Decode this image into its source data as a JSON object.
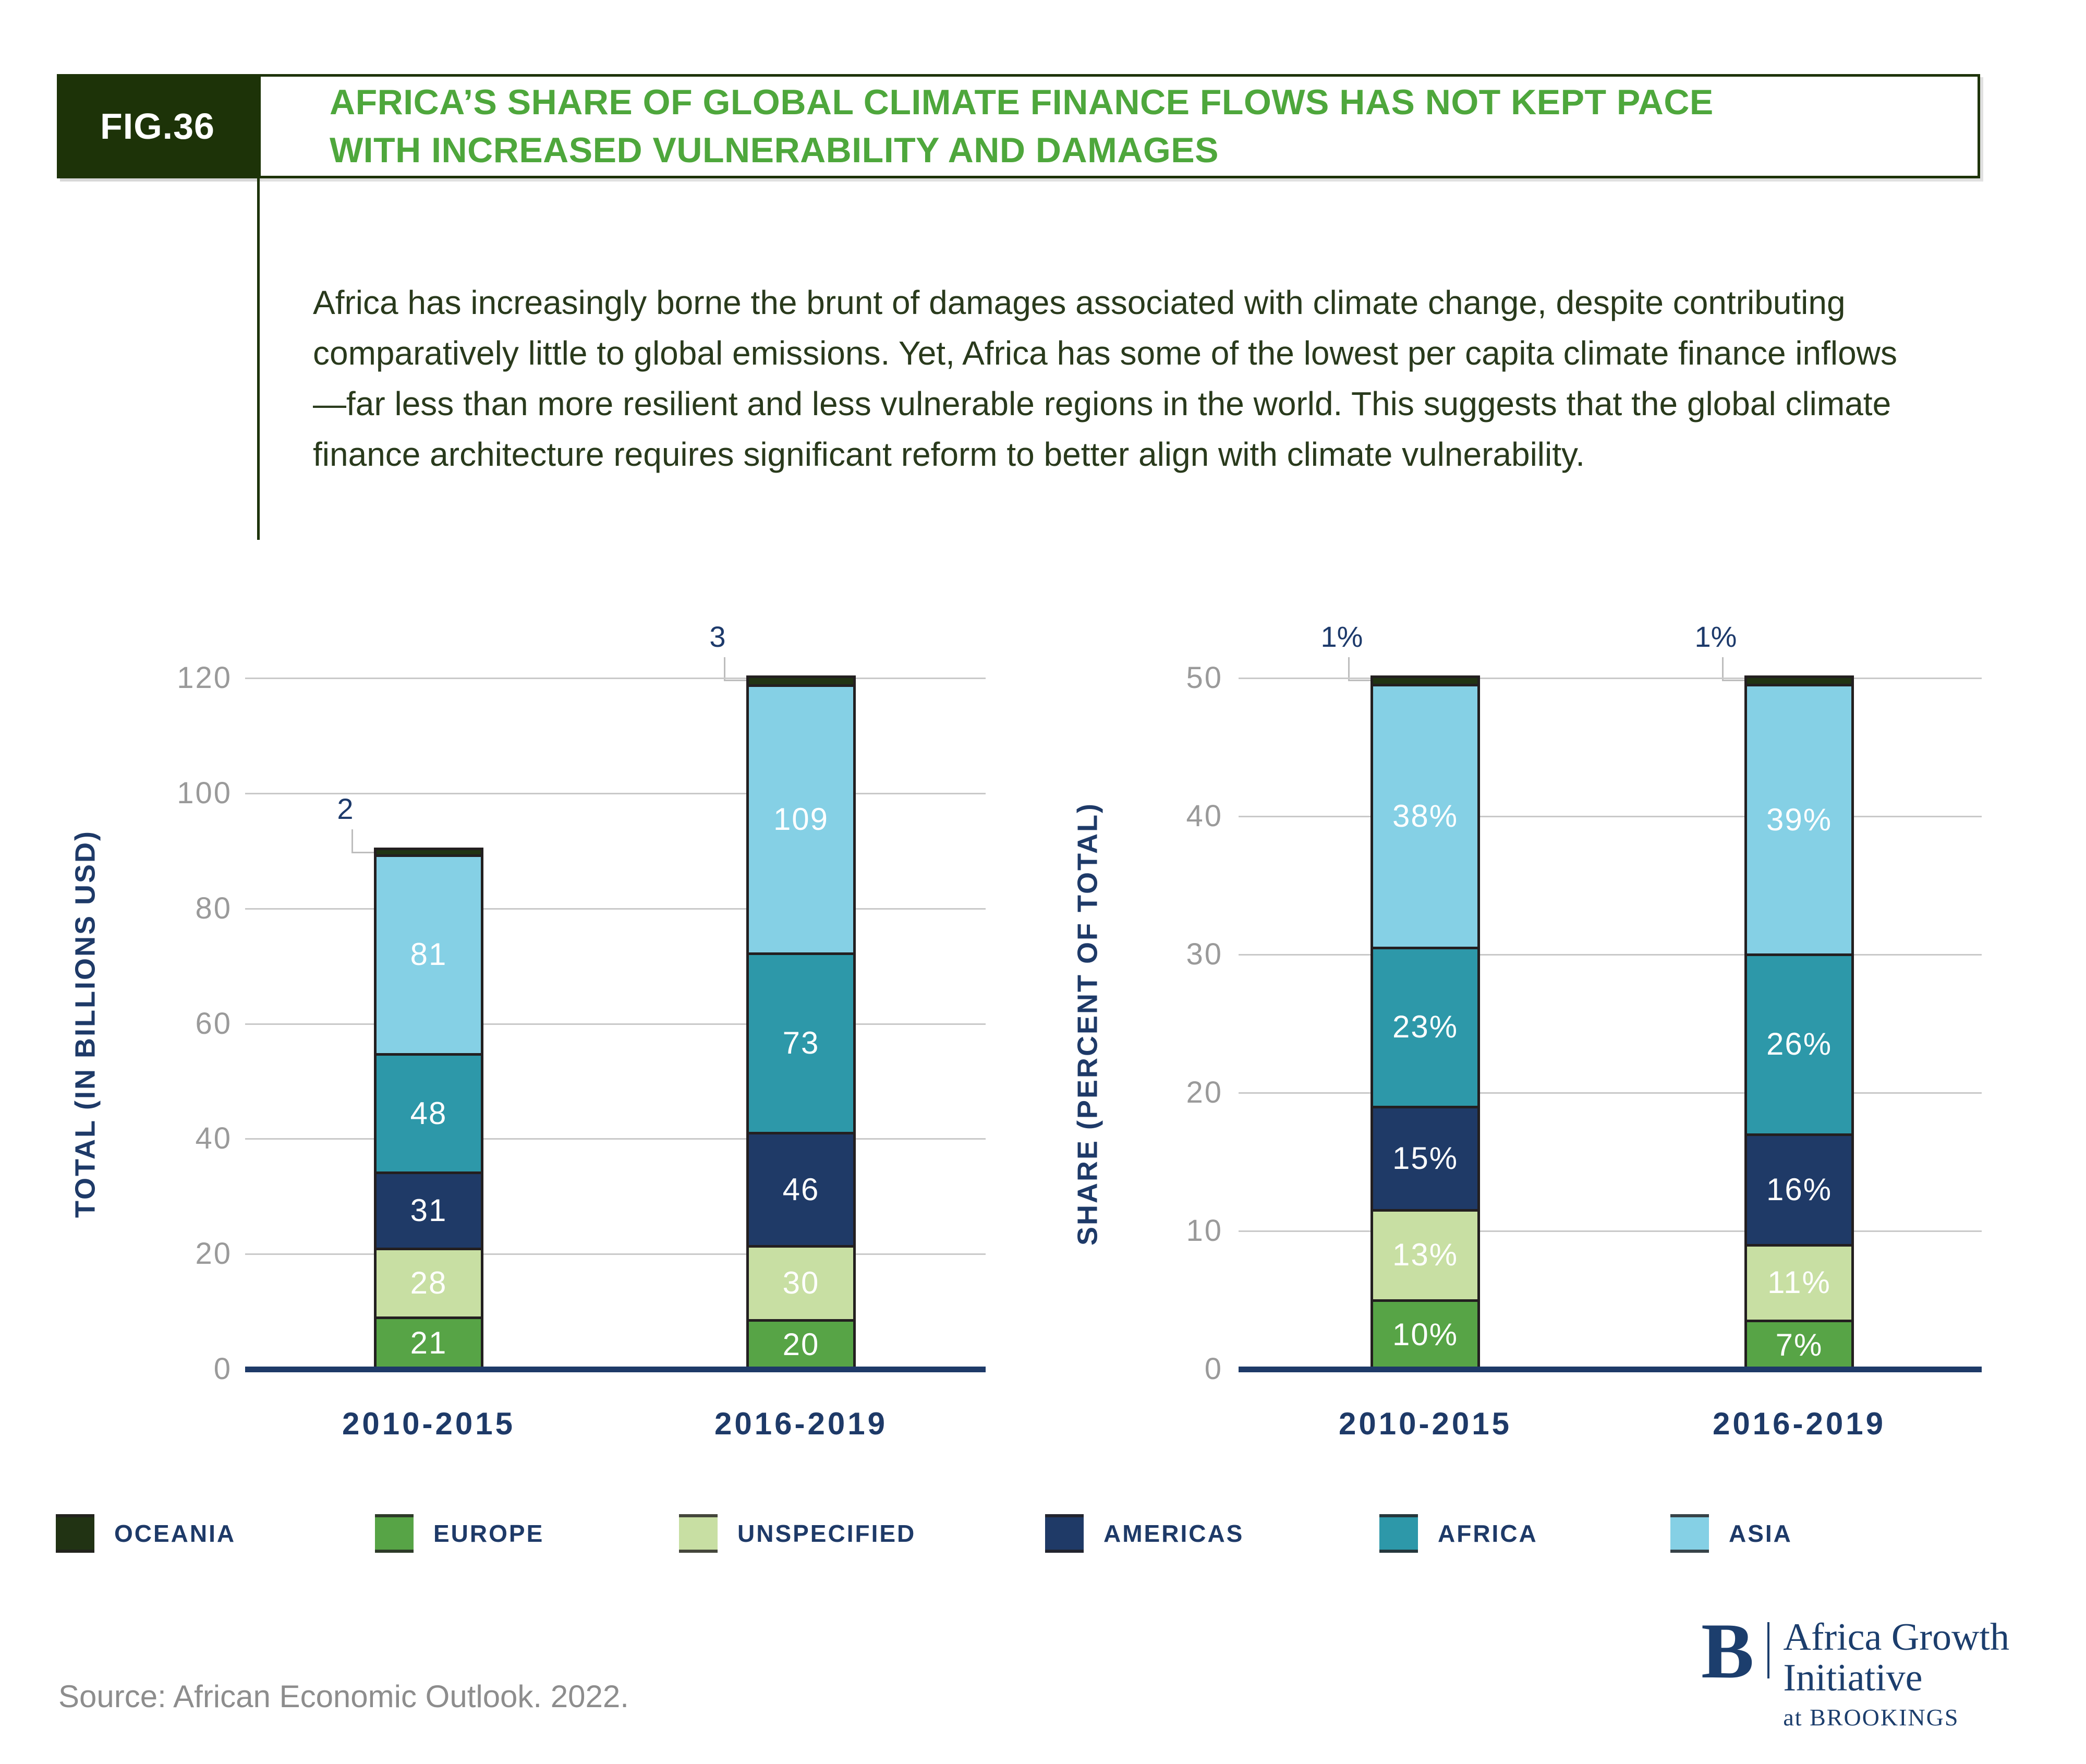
{
  "figure": {
    "tag": "FIG.36",
    "title_lines": [
      "AFRICA’S SHARE OF GLOBAL CLIMATE FINANCE FLOWS HAS NOT KEPT PACE",
      "WITH INCREASED VULNERABILITY AND DAMAGES"
    ],
    "description": "Africa has increasingly borne the brunt of damages associated with climate change, despite contributing comparatively little to global emissions. Yet, Africa has some of the lowest per capita climate finance inflows—far less than more resilient and less vulnerable regions in the world. This suggests that the global climate finance architecture requires significant reform to better align with climate vulnerability."
  },
  "chart_data": [
    {
      "type": "bar",
      "stacked": true,
      "title": "",
      "xlabel": "",
      "ylabel": "TOTAL (IN BILLIONS USD)",
      "categories": [
        "2010-2015",
        "2016-2019"
      ],
      "series": [
        {
          "name": "EUROPE",
          "values": [
            21,
            20
          ]
        },
        {
          "name": "UNSPECIFIED",
          "values": [
            28,
            30
          ]
        },
        {
          "name": "AMERICAS",
          "values": [
            31,
            46
          ]
        },
        {
          "name": "AFRICA",
          "values": [
            48,
            73
          ]
        },
        {
          "name": "ASIA",
          "values": [
            81,
            109
          ]
        },
        {
          "name": "OCEANIA",
          "values": [
            2,
            3
          ],
          "callout": true
        }
      ],
      "callout_labels": [
        "2",
        "3"
      ],
      "label_suffix": "",
      "ylim": [
        0,
        120
      ],
      "yticks": [
        0,
        20,
        40,
        60,
        80,
        100,
        120
      ],
      "grid": true
    },
    {
      "type": "bar",
      "stacked": true,
      "title": "",
      "xlabel": "",
      "ylabel": "SHARE (PERCENT OF TOTAL)",
      "categories": [
        "2010-2015",
        "2016-2019"
      ],
      "series": [
        {
          "name": "EUROPE",
          "values": [
            10,
            7
          ]
        },
        {
          "name": "UNSPECIFIED",
          "values": [
            13,
            11
          ]
        },
        {
          "name": "AMERICAS",
          "values": [
            15,
            16
          ]
        },
        {
          "name": "AFRICA",
          "values": [
            23,
            26
          ]
        },
        {
          "name": "ASIA",
          "values": [
            38,
            39
          ]
        },
        {
          "name": "OCEANIA",
          "values": [
            1,
            1
          ],
          "callout": true
        }
      ],
      "callout_labels": [
        "1%",
        "1%"
      ],
      "label_suffix": "%",
      "ylim": [
        0,
        50
      ],
      "yticks": [
        0,
        10,
        20,
        30,
        40,
        50
      ],
      "grid": true
    }
  ],
  "legend": [
    {
      "label": "OCEANIA",
      "color": "#213313"
    },
    {
      "label": "EUROPE",
      "color": "#57a446"
    },
    {
      "label": "UNSPECIFIED",
      "color": "#c8dfa3"
    },
    {
      "label": "AMERICAS",
      "color": "#1f3a67"
    },
    {
      "label": "AFRICA",
      "color": "#2d98a9"
    },
    {
      "label": "ASIA",
      "color": "#85d0e5"
    }
  ],
  "source": {
    "text": "Source: African Economic Outlook. 2022."
  },
  "logo": {
    "b": "B",
    "name_line1": "Africa Growth",
    "name_line2": "Initiative",
    "tagline": "at BROOKINGS"
  },
  "colors": {
    "header_green": "#1d3308",
    "title_green": "#4ea73c",
    "navy_text": "#1e3a68",
    "tick_gray": "#9a9a9a",
    "gridline_gray": "#c9c9c9",
    "bar_outline": "#231f20",
    "callout_connector": "#bdbdbd",
    "source_gray": "#8d8d8d",
    "logo_navy": "#1c3e6d"
  }
}
